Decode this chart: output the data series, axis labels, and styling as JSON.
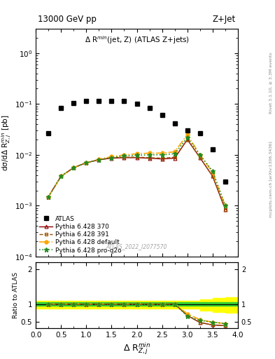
{
  "title_left": "13000 GeV pp",
  "title_right": "Z+Jet",
  "plot_title": "Δ R$^{min}$(jet, Z) (ATLAS Z+jets)",
  "xlabel": "Δ R$^{min}_{Z,j}$",
  "ylabel_main": "dσ/dΔ R$^{min}_{Z,j}$ [pb]",
  "ylabel_ratio": "Ratio to ATLAS",
  "watermark": "ATLAS_2022_I2077570",
  "rivet_label": "Rivet 3.1.10, ≥ 3.3M events",
  "arxiv_label": "mcplots.cern.ch [arXiv:1306.3436]",
  "atlas_x": [
    0.25,
    0.5,
    0.75,
    1.0,
    1.25,
    1.5,
    1.75,
    2.0,
    2.25,
    2.5,
    2.75,
    3.0,
    3.25,
    3.5,
    3.75
  ],
  "atlas_y": [
    0.027,
    0.082,
    0.105,
    0.115,
    0.115,
    0.115,
    0.115,
    0.1,
    0.082,
    0.06,
    0.042,
    0.03,
    0.027,
    0.013,
    0.003
  ],
  "py370_x": [
    0.25,
    0.5,
    0.75,
    1.0,
    1.25,
    1.5,
    1.75,
    2.0,
    2.25,
    2.5,
    2.75,
    3.0,
    3.25,
    3.5,
    3.75
  ],
  "py370_y": [
    0.0015,
    0.0038,
    0.0056,
    0.007,
    0.008,
    0.0086,
    0.0088,
    0.0088,
    0.0086,
    0.0083,
    0.0086,
    0.02,
    0.0088,
    0.0038,
    0.00085
  ],
  "py391_x": [
    0.25,
    0.5,
    0.75,
    1.0,
    1.25,
    1.5,
    1.75,
    2.0,
    2.25,
    2.5,
    2.75,
    3.0,
    3.25,
    3.5,
    3.75
  ],
  "py391_y": [
    0.0015,
    0.0038,
    0.0056,
    0.007,
    0.008,
    0.0088,
    0.009,
    0.009,
    0.0088,
    0.0086,
    0.009,
    0.02,
    0.0088,
    0.0038,
    0.00085
  ],
  "pydef_x": [
    0.25,
    0.5,
    0.75,
    1.0,
    1.25,
    1.5,
    1.75,
    2.0,
    2.25,
    2.5,
    2.75,
    3.0,
    3.25,
    3.5,
    3.75
  ],
  "pydef_y": [
    0.0015,
    0.0038,
    0.0056,
    0.007,
    0.0082,
    0.0092,
    0.01,
    0.0105,
    0.0108,
    0.0108,
    0.0115,
    0.025,
    0.01,
    0.0045,
    0.001
  ],
  "pyq2o_x": [
    0.25,
    0.5,
    0.75,
    1.0,
    1.25,
    1.5,
    1.75,
    2.0,
    2.25,
    2.5,
    2.75,
    3.0,
    3.25,
    3.5,
    3.75
  ],
  "pyq2o_y": [
    0.0015,
    0.0038,
    0.0056,
    0.007,
    0.008,
    0.0088,
    0.0095,
    0.0098,
    0.01,
    0.01,
    0.0105,
    0.022,
    0.01,
    0.0048,
    0.001
  ],
  "ratio_py370_x": [
    0.25,
    0.5,
    0.75,
    1.0,
    1.25,
    1.5,
    1.75,
    2.0,
    2.25,
    2.5,
    2.75,
    3.0,
    3.25,
    3.5,
    3.75
  ],
  "ratio_py370_y": [
    1.0,
    1.0,
    1.0,
    1.0,
    1.0,
    1.0,
    1.0,
    1.0,
    1.0,
    1.0,
    1.0,
    0.67,
    0.47,
    0.4,
    0.38
  ],
  "ratio_py391_x": [
    0.25,
    0.5,
    0.75,
    1.0,
    1.25,
    1.5,
    1.75,
    2.0,
    2.25,
    2.5,
    2.75,
    3.0,
    3.25,
    3.5,
    3.75
  ],
  "ratio_py391_y": [
    1.0,
    1.0,
    1.0,
    1.0,
    1.0,
    1.0,
    1.0,
    1.0,
    1.0,
    1.0,
    1.0,
    0.67,
    0.47,
    0.4,
    0.38
  ],
  "ratio_pydef_x": [
    0.25,
    0.5,
    0.75,
    1.0,
    1.25,
    1.5,
    1.75,
    2.0,
    2.25,
    2.5,
    2.75,
    3.0,
    3.25,
    3.5,
    3.75
  ],
  "ratio_pydef_y": [
    1.0,
    1.0,
    1.0,
    1.0,
    1.0,
    1.0,
    1.0,
    1.0,
    1.0,
    1.0,
    1.0,
    0.72,
    0.55,
    0.48,
    0.44
  ],
  "ratio_pyq2o_x": [
    0.25,
    0.5,
    0.75,
    1.0,
    1.25,
    1.5,
    1.75,
    2.0,
    2.25,
    2.5,
    2.75,
    3.0,
    3.25,
    3.5,
    3.75
  ],
  "ratio_pyq2o_y": [
    1.0,
    1.0,
    1.0,
    1.0,
    1.0,
    1.0,
    1.0,
    1.0,
    1.0,
    1.0,
    1.0,
    0.65,
    0.53,
    0.48,
    0.44
  ],
  "green_band_lo": 0.95,
  "green_band_hi": 1.05,
  "yellow_band_x": [
    0.0,
    0.5,
    1.0,
    1.5,
    2.0,
    2.5,
    3.0,
    3.25,
    3.5,
    3.75,
    4.0
  ],
  "yellow_band_lo": [
    0.88,
    0.88,
    0.88,
    0.88,
    0.88,
    0.88,
    0.88,
    0.82,
    0.78,
    0.76,
    0.76
  ],
  "yellow_band_hi": [
    1.1,
    1.1,
    1.1,
    1.1,
    1.1,
    1.1,
    1.1,
    1.13,
    1.17,
    1.2,
    1.22
  ],
  "color_py370": "#8B0000",
  "color_py391": "#9B5000",
  "color_pydef": "#FFA500",
  "color_pyq2o": "#228B22",
  "ylim_main": [
    0.0001,
    3.0
  ],
  "xlim": [
    0,
    4
  ],
  "ylim_ratio": [
    0.3,
    2.2
  ]
}
